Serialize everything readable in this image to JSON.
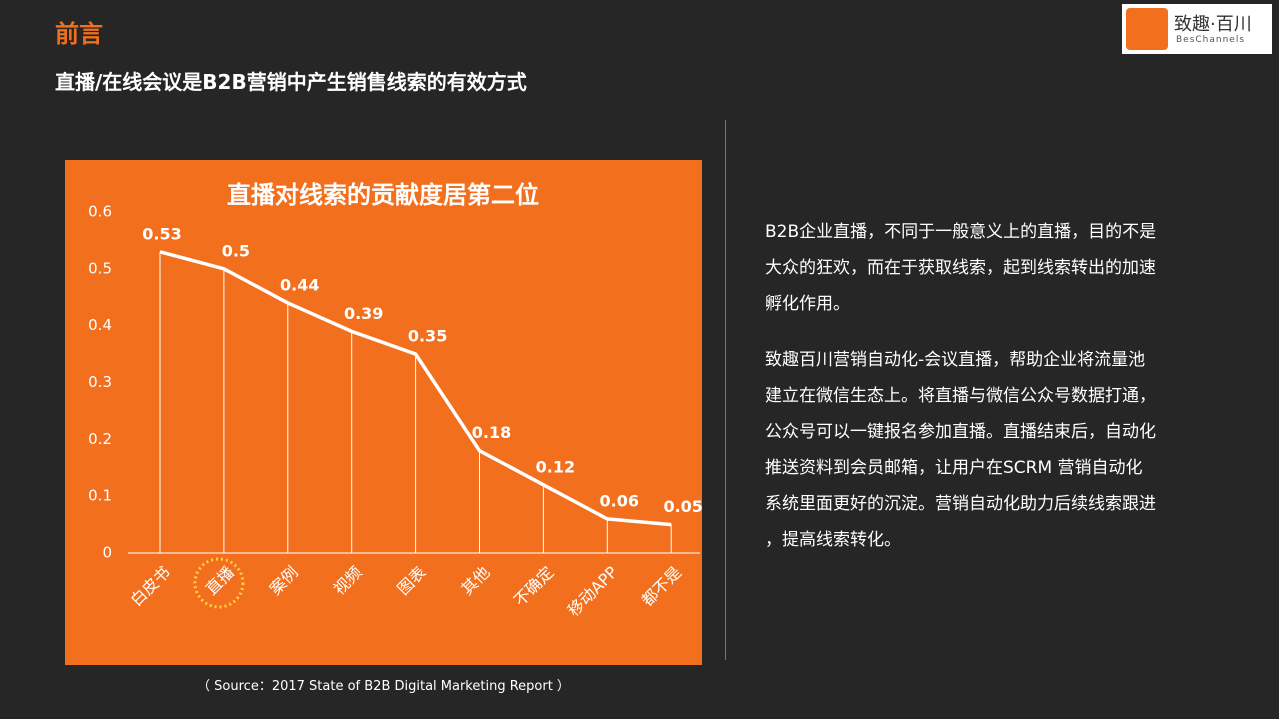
{
  "header": {
    "title": "前言",
    "subtitle": "直播/在线会议是B2B营销中产生销售线索的有效方式"
  },
  "logo": {
    "name": "致趣·百川",
    "sub": "BesChannels"
  },
  "chart_data": {
    "type": "line",
    "title": "直播对线索的贡献度居第二位",
    "categories": [
      "白皮书",
      "直播",
      "案例",
      "视频",
      "图表",
      "其他",
      "不确定",
      "移动APP",
      "都不是"
    ],
    "values": [
      0.53,
      0.5,
      0.44,
      0.39,
      0.35,
      0.18,
      0.12,
      0.06,
      0.05
    ],
    "color": "#ffffff",
    "ylim": [
      0,
      0.6
    ],
    "yticks": [
      0,
      0.1,
      0.2,
      0.3,
      0.4,
      0.5,
      0.6
    ],
    "drop_lines": true,
    "highlight_index": 1,
    "highlight_color": "#ffd23f"
  },
  "body": [
    [
      "B2B企业直播，不同于一般意义上的直播，目的不是",
      "大众的狂欢，而在于获取线索，起到线索转出的加速",
      "孵化作用。"
    ],
    [
      "致趣百川营销自动化-会议直播，帮助企业将流量池",
      "建立在微信生态上。将直播与微信公众号数据打通，",
      "公众号可以一键报名参加直播。直播结束后，自动化",
      "推送资料到会员邮箱，让用户在SCRM 营销自动化",
      "系统里面更好的沉淀。营销自动化助力后续线索跟进",
      "，提高线索转化。"
    ]
  ],
  "source": "（ Source：2017 State of B2B Digital Marketing Report ）"
}
